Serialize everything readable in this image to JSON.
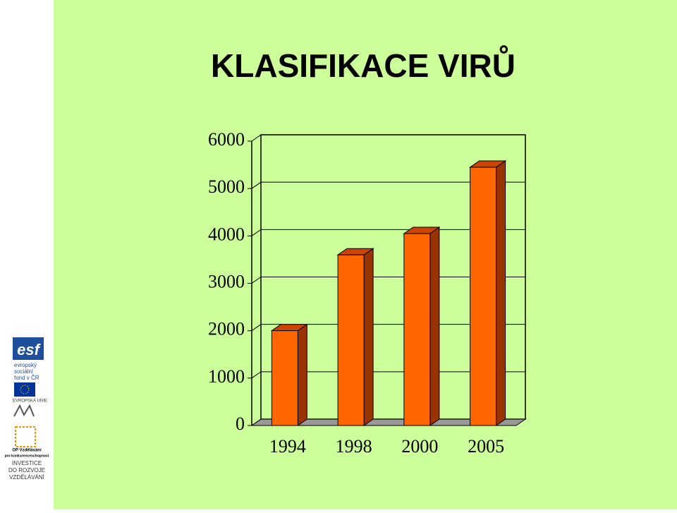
{
  "chart_data": {
    "type": "bar3d",
    "title": "KLASIFIKACE VIRŮ",
    "categories": [
      "1994",
      "1998",
      "2000",
      "2005"
    ],
    "values": [
      2000,
      3600,
      4050,
      5450
    ],
    "color": "#ff6600",
    "ylim": [
      0,
      6000
    ],
    "yticks": [
      0,
      1000,
      2000,
      3000,
      4000,
      5000,
      6000
    ],
    "grid": true
  },
  "sidebar": {
    "esf": "esf",
    "esf_lines": [
      "evropský",
      "sociální",
      "fond v ČR"
    ],
    "eu": "EVROPSKÁ UNIE",
    "op": [
      "OP Vzdělávání",
      "pro konkurenceschopnost"
    ],
    "invest": [
      "INVESTICE",
      "DO ROZVOJE",
      "VZDĚLÁVÁNÍ"
    ]
  }
}
